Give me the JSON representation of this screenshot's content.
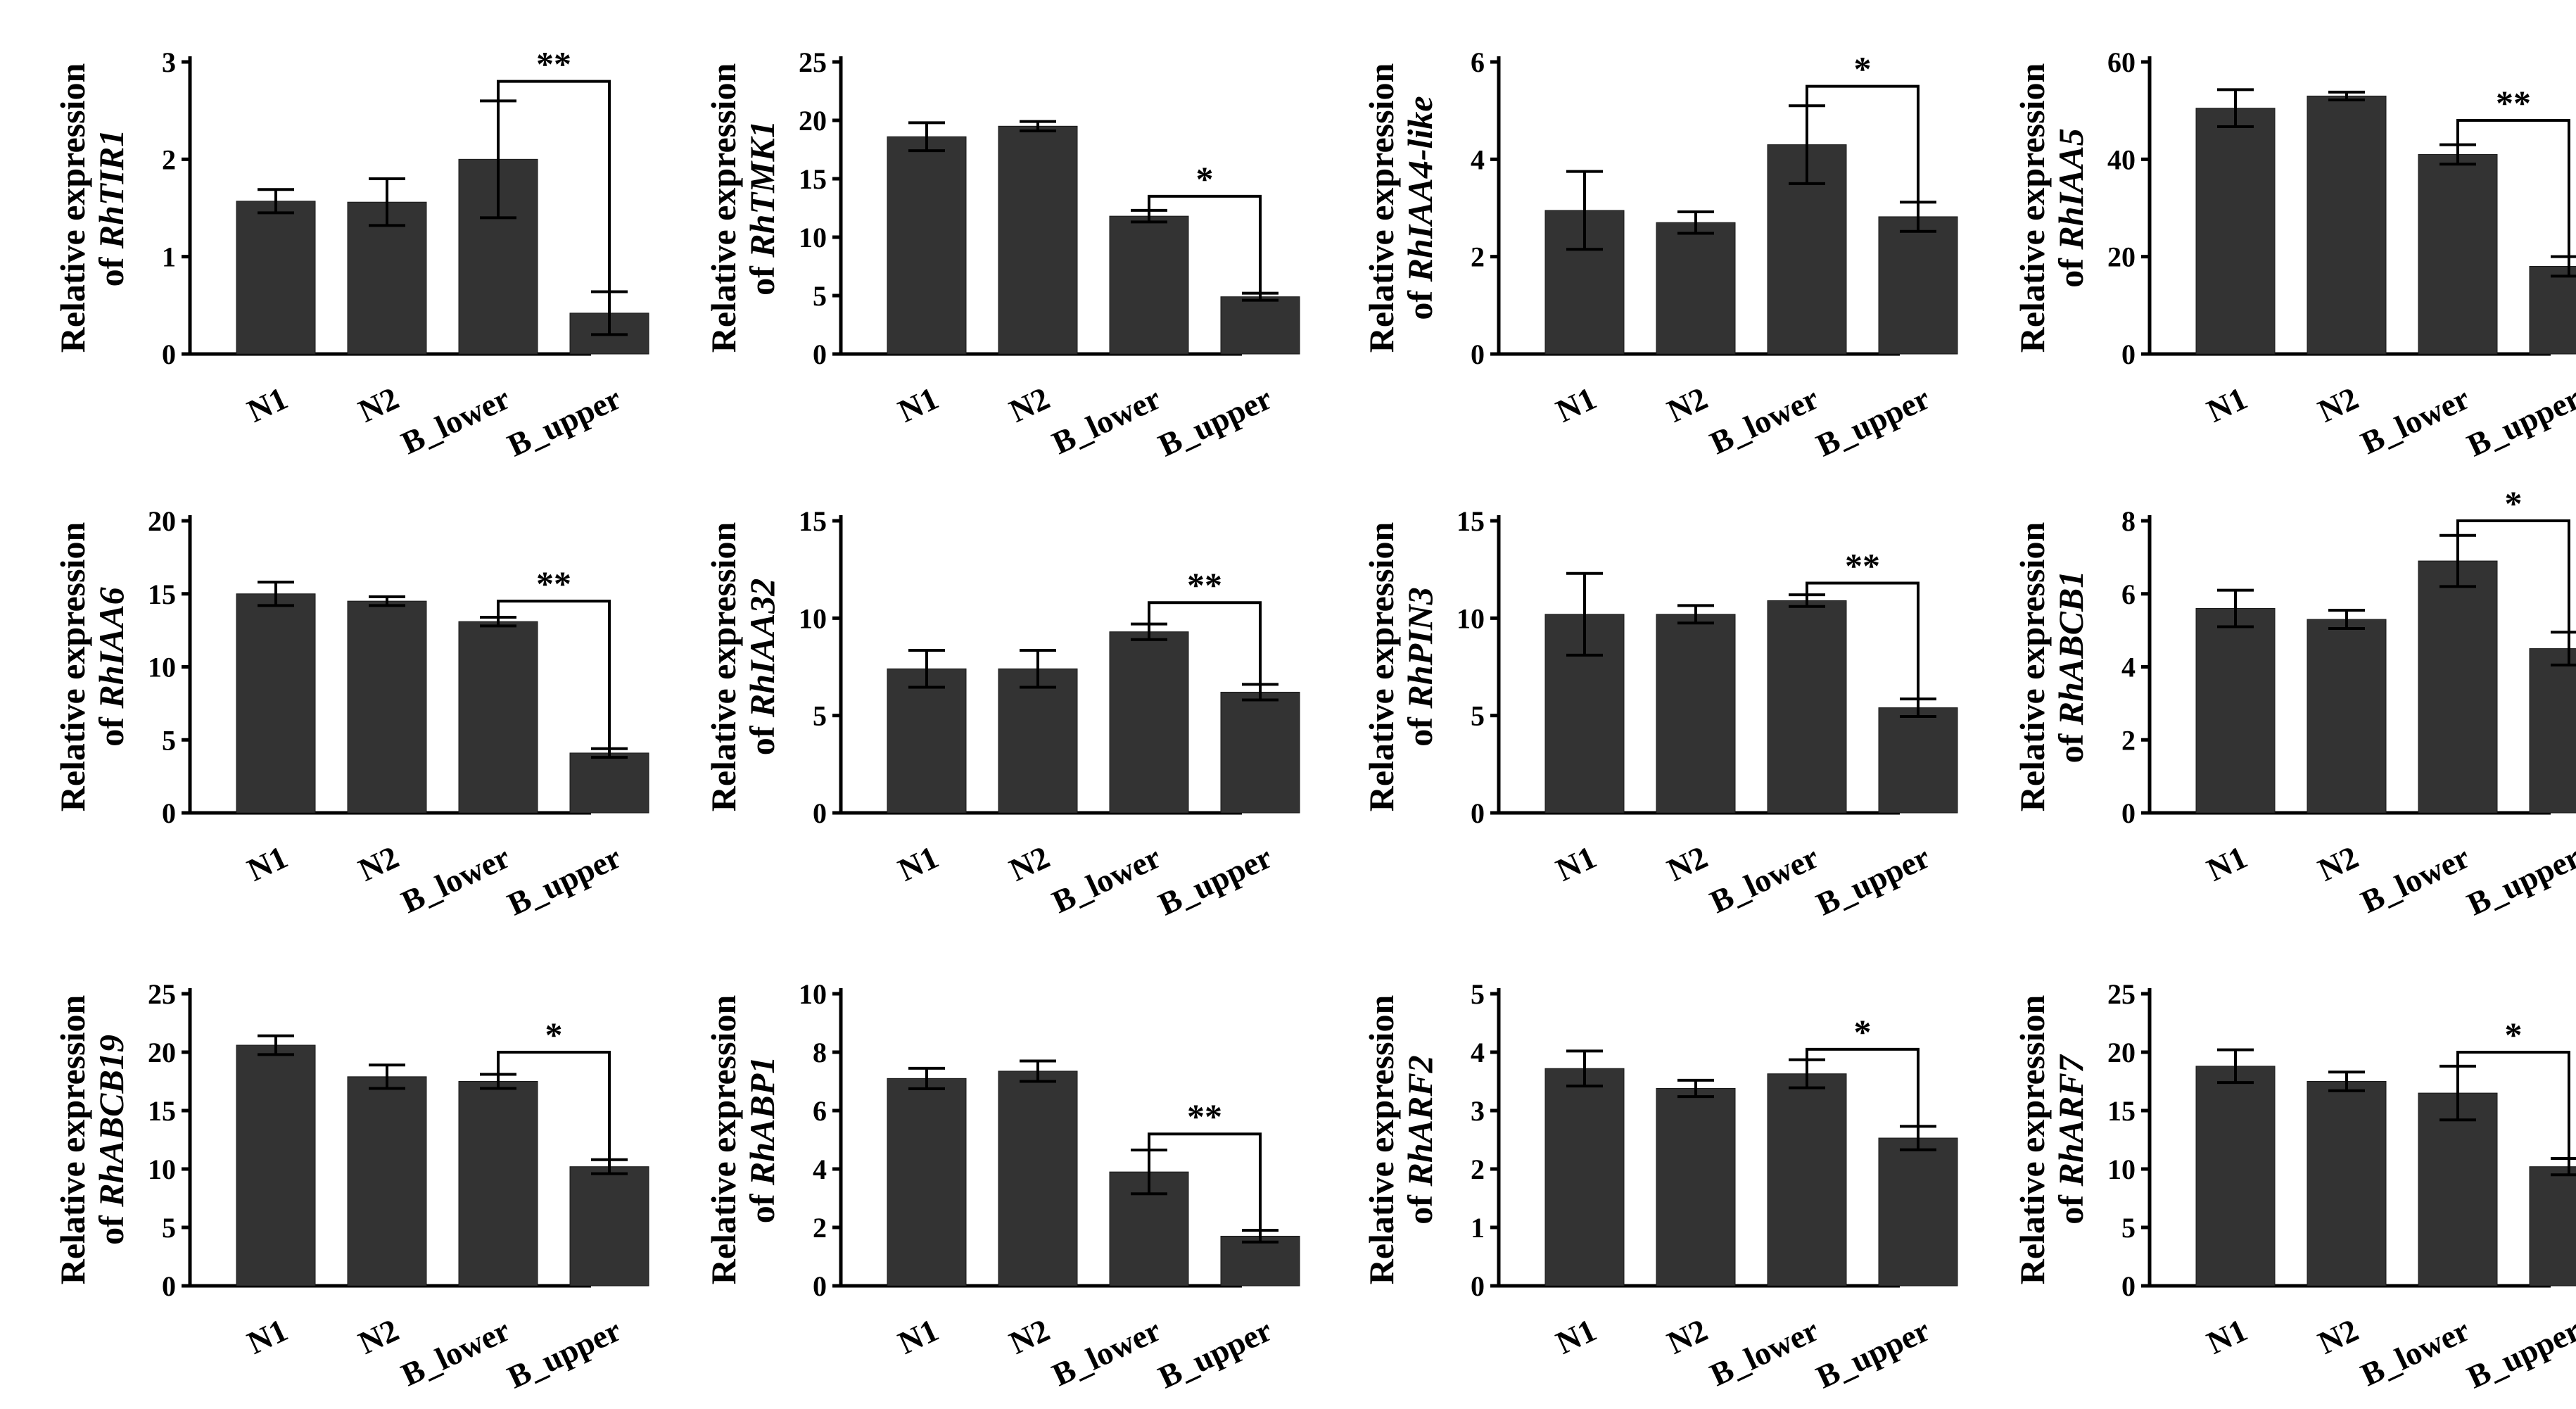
{
  "figure": {
    "panel_count": 12,
    "bar_color": "#333333"
  },
  "chart_data": [
    {
      "type": "bar",
      "gene": "RhTIR1",
      "ylabel_prefix": "Relative expression",
      "ylabel_of": "of ",
      "ylim": [
        0,
        3
      ],
      "yticks": [
        "0",
        "1",
        "2",
        "3"
      ],
      "categories": [
        "N1",
        "N2",
        "B_lower",
        "B_upper"
      ],
      "values": [
        1.57,
        1.56,
        2.0,
        0.42
      ],
      "errors": [
        0.12,
        0.24,
        0.6,
        0.22
      ],
      "significance": {
        "pair": [
          "B_lower",
          "B_upper"
        ],
        "label": "**",
        "level": 2.8
      }
    },
    {
      "type": "bar",
      "gene": "RhTMK1",
      "ylabel_prefix": "Relative expression",
      "ylabel_of": "of ",
      "ylim": [
        0,
        25
      ],
      "yticks": [
        "0",
        "5",
        "10",
        "15",
        "20",
        "25"
      ],
      "categories": [
        "N1",
        "N2",
        "B_lower",
        "B_upper"
      ],
      "values": [
        18.6,
        19.5,
        11.8,
        4.9
      ],
      "errors": [
        1.2,
        0.4,
        0.5,
        0.3
      ],
      "significance": {
        "pair": [
          "B_lower",
          "B_upper"
        ],
        "label": "*",
        "level": 13.5
      }
    },
    {
      "type": "bar",
      "gene": "RhIAA4-like",
      "ylabel_prefix": "Relative expression",
      "ylabel_of": "of ",
      "ylim": [
        0,
        6
      ],
      "yticks": [
        "0",
        "2",
        "4",
        "6"
      ],
      "categories": [
        "N1",
        "N2",
        "B_lower",
        "B_upper"
      ],
      "values": [
        2.95,
        2.7,
        4.3,
        2.82
      ],
      "errors": [
        0.8,
        0.22,
        0.8,
        0.3
      ],
      "significance": {
        "pair": [
          "B_lower",
          "B_upper"
        ],
        "label": "*",
        "level": 5.5
      }
    },
    {
      "type": "bar",
      "gene": "RhIAA5",
      "ylabel_prefix": "Relative expression",
      "ylabel_of": "of ",
      "ylim": [
        0,
        60
      ],
      "yticks": [
        "0",
        "20",
        "40",
        "60"
      ],
      "categories": [
        "N1",
        "N2",
        "B_lower",
        "B_upper"
      ],
      "values": [
        50.5,
        53.0,
        41.0,
        18.0
      ],
      "errors": [
        3.8,
        0.8,
        2.0,
        2.0
      ],
      "significance": {
        "pair": [
          "B_lower",
          "B_upper"
        ],
        "label": "**",
        "level": 48
      }
    },
    {
      "type": "bar",
      "gene": "RhIAA6",
      "ylabel_prefix": "Relative expression",
      "ylabel_of": "of ",
      "ylim": [
        0,
        20
      ],
      "yticks": [
        "0",
        "5",
        "10",
        "15",
        "20"
      ],
      "categories": [
        "N1",
        "N2",
        "B_lower",
        "B_upper"
      ],
      "values": [
        15.0,
        14.5,
        13.1,
        4.1
      ],
      "errors": [
        0.8,
        0.3,
        0.3,
        0.3
      ],
      "significance": {
        "pair": [
          "B_lower",
          "B_upper"
        ],
        "label": "**",
        "level": 14.5
      }
    },
    {
      "type": "bar",
      "gene": "RhIAA32",
      "ylabel_prefix": "Relative expression",
      "ylabel_of": "of ",
      "ylim": [
        0,
        15
      ],
      "yticks": [
        "0",
        "5",
        "10",
        "15"
      ],
      "categories": [
        "N1",
        "N2",
        "B_lower",
        "B_upper"
      ],
      "values": [
        7.4,
        7.4,
        9.3,
        6.2
      ],
      "errors": [
        0.95,
        0.95,
        0.4,
        0.4
      ],
      "significance": {
        "pair": [
          "B_lower",
          "B_upper"
        ],
        "label": "**",
        "level": 10.8
      }
    },
    {
      "type": "bar",
      "gene": "RhPIN3",
      "ylabel_prefix": "Relative expression",
      "ylabel_of": "of ",
      "ylim": [
        0,
        15
      ],
      "yticks": [
        "0",
        "5",
        "10",
        "15"
      ],
      "categories": [
        "N1",
        "N2",
        "B_lower",
        "B_upper"
      ],
      "values": [
        10.2,
        10.2,
        10.9,
        5.4
      ],
      "errors": [
        2.1,
        0.45,
        0.3,
        0.45
      ],
      "significance": {
        "pair": [
          "B_lower",
          "B_upper"
        ],
        "label": "**",
        "level": 11.8
      }
    },
    {
      "type": "bar",
      "gene": "RhABCB1",
      "ylabel_prefix": "Relative expression",
      "ylabel_of": "of ",
      "ylim": [
        0,
        8
      ],
      "yticks": [
        "0",
        "2",
        "4",
        "6",
        "8"
      ],
      "categories": [
        "N1",
        "N2",
        "B_lower",
        "B_upper"
      ],
      "values": [
        5.6,
        5.3,
        6.9,
        4.5
      ],
      "errors": [
        0.5,
        0.25,
        0.7,
        0.45
      ],
      "significance": {
        "pair": [
          "B_lower",
          "B_upper"
        ],
        "label": "*",
        "level": 8.0
      }
    },
    {
      "type": "bar",
      "gene": "RhABCB19",
      "ylabel_prefix": "Relative expression",
      "ylabel_of": "of ",
      "ylim": [
        0,
        25
      ],
      "yticks": [
        "0",
        "5",
        "10",
        "15",
        "20",
        "25"
      ],
      "categories": [
        "N1",
        "N2",
        "B_lower",
        "B_upper"
      ],
      "values": [
        20.6,
        17.9,
        17.5,
        10.2
      ],
      "errors": [
        0.8,
        1.0,
        0.6,
        0.6
      ],
      "significance": {
        "pair": [
          "B_lower",
          "B_upper"
        ],
        "label": "*",
        "level": 20.0
      }
    },
    {
      "type": "bar",
      "gene": "RhABP1",
      "ylabel_prefix": "Relative expression",
      "ylabel_of": "of ",
      "ylim": [
        0,
        10
      ],
      "yticks": [
        "0",
        "2",
        "4",
        "6",
        "8",
        "10"
      ],
      "categories": [
        "N1",
        "N2",
        "B_lower",
        "B_upper"
      ],
      "values": [
        7.1,
        7.35,
        3.9,
        1.7
      ],
      "errors": [
        0.35,
        0.35,
        0.75,
        0.2
      ],
      "significance": {
        "pair": [
          "B_lower",
          "B_upper"
        ],
        "label": "**",
        "level": 5.2
      }
    },
    {
      "type": "bar",
      "gene": "RhARF2",
      "ylabel_prefix": "Relative expression",
      "ylabel_of": "of ",
      "ylim": [
        0,
        5
      ],
      "yticks": [
        "0",
        "1",
        "2",
        "3",
        "4",
        "5"
      ],
      "categories": [
        "N1",
        "N2",
        "B_lower",
        "B_upper"
      ],
      "values": [
        3.72,
        3.38,
        3.63,
        2.53
      ],
      "errors": [
        0.3,
        0.14,
        0.24,
        0.2
      ],
      "significance": {
        "pair": [
          "B_lower",
          "B_upper"
        ],
        "label": "*",
        "level": 4.05
      }
    },
    {
      "type": "bar",
      "gene": "RhARF7",
      "ylabel_prefix": "Relative expression",
      "ylabel_of": "of ",
      "ylim": [
        0,
        25
      ],
      "yticks": [
        "0",
        "5",
        "10",
        "15",
        "20",
        "25"
      ],
      "categories": [
        "N1",
        "N2",
        "B_lower",
        "B_upper"
      ],
      "values": [
        18.8,
        17.5,
        16.5,
        10.2
      ],
      "errors": [
        1.4,
        0.8,
        2.3,
        0.7
      ],
      "significance": {
        "pair": [
          "B_lower",
          "B_upper"
        ],
        "label": "*",
        "level": 20.0
      }
    }
  ]
}
